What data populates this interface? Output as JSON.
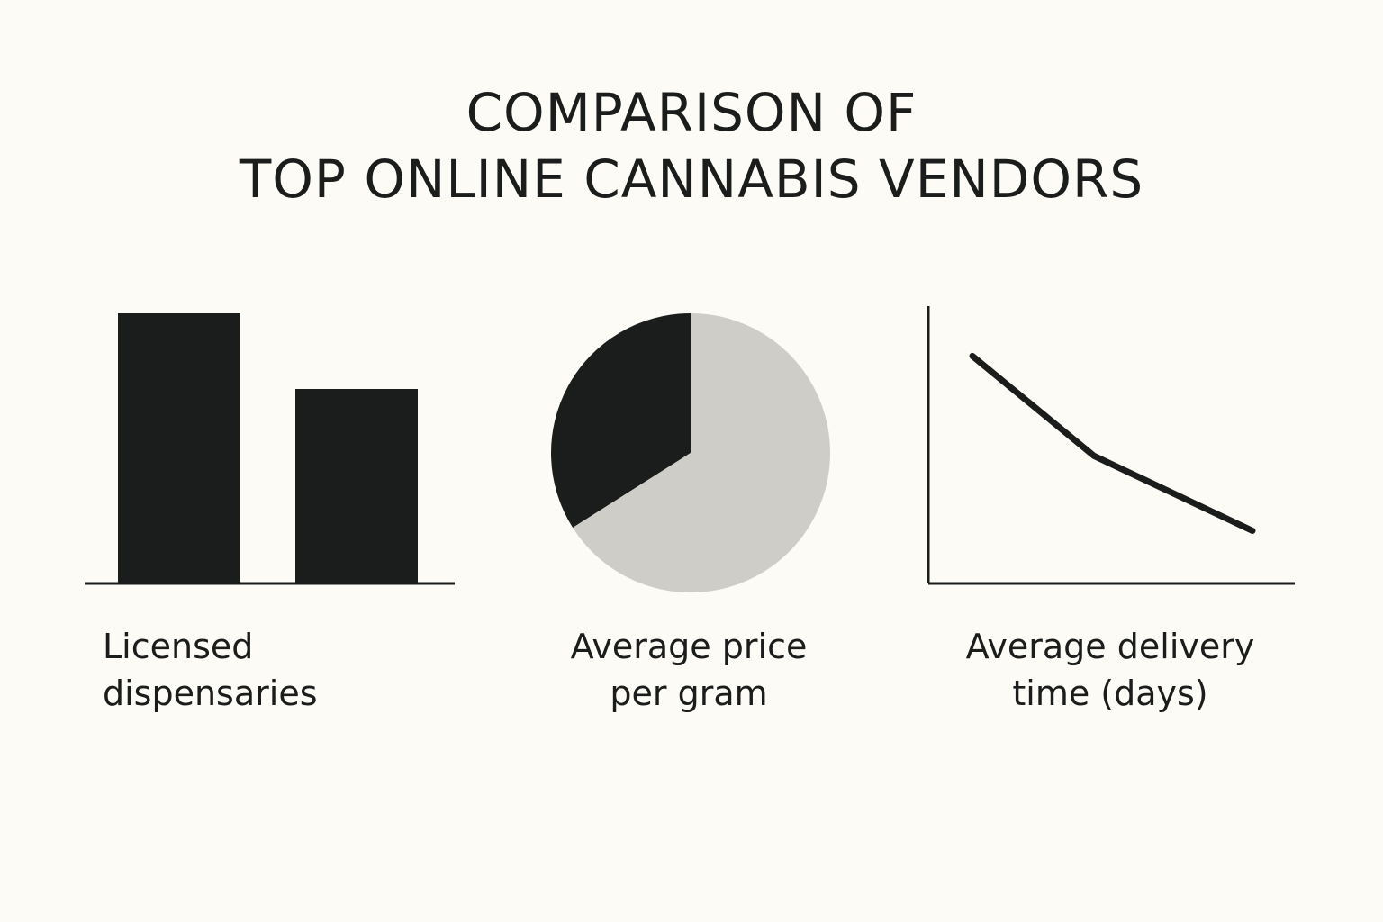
{
  "title": {
    "line1": "COMPARISON OF",
    "line2": "TOP ONLINE CANNABIS VENDORS"
  },
  "colors": {
    "background": "#fcfbf6",
    "dark": "#1b1d1c",
    "light_gray": "#cfcdc8"
  },
  "chart_data": [
    {
      "type": "bar",
      "caption": [
        "Licensed",
        "dispensaries"
      ],
      "categories": [
        "",
        ""
      ],
      "values": [
        100,
        72
      ],
      "ylim": [
        0,
        100
      ],
      "grid": false,
      "legend": "none"
    },
    {
      "type": "pie",
      "caption": [
        "Average price",
        "per gram"
      ],
      "labels": [
        "",
        ""
      ],
      "values": [
        34,
        66
      ],
      "colors": [
        "#1b1d1c",
        "#cfcdc8"
      ],
      "legend": "none"
    },
    {
      "type": "line",
      "caption": [
        "Average delivery",
        "time (days)"
      ],
      "x": [
        1,
        2,
        3
      ],
      "y": [
        82,
        46,
        19
      ],
      "ylim": [
        0,
        100
      ],
      "grid": false,
      "legend": "none"
    }
  ]
}
